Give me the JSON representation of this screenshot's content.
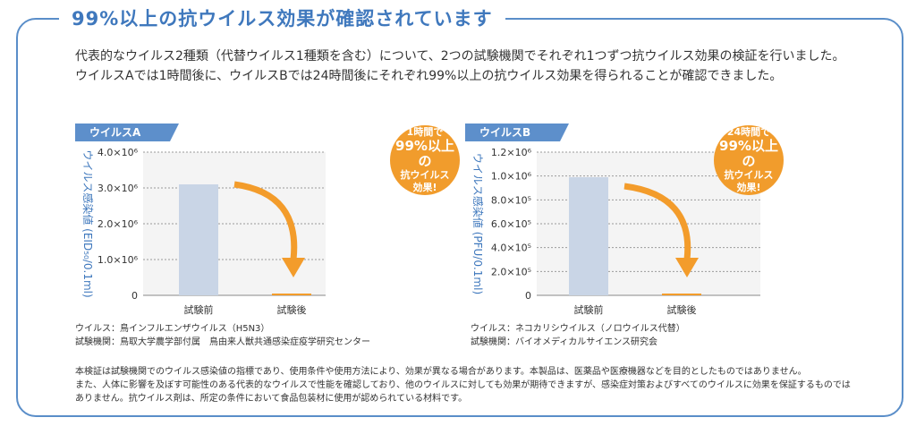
{
  "title": "99%以上の抗ウイルス効果が確認されています",
  "intro": [
    "代表的なウイルス2種類（代替ウイルス1種類を含む）について、2つの試験機関でそれぞれ1つずつ抗ウイルス効果の検証を行いました。",
    "ウイルスAでは1時間後に、ウイルスBでは24時間後にそれぞれ99%以上の抗ウイルス効果を得られることが確認できました。"
  ],
  "colors": {
    "accent": "#3f78bd",
    "bar_before": "#c9d5e6",
    "bar_after": "#f39c2b",
    "badge": "#f19c2c",
    "arrow": "#f39c2b"
  },
  "chart_data": [
    {
      "type": "bar",
      "label": "ウイルスA",
      "categories": [
        "試験前",
        "試験後"
      ],
      "values": [
        3100000,
        30000
      ],
      "ylabel": "ウイルス感染値 (EID₅₀/0.1ml)",
      "ylim": [
        0,
        4000000
      ],
      "ticks": [
        {
          "value": 0,
          "label": "0"
        },
        {
          "value": 1000000,
          "label": "1.0×10⁶"
        },
        {
          "value": 2000000,
          "label": "2.0×10⁶"
        },
        {
          "value": 3000000,
          "label": "3.0×10⁶"
        },
        {
          "value": 4000000,
          "label": "4.0×10⁶"
        }
      ],
      "grid": true,
      "badge": [
        "1時間で",
        "99%以上の",
        "抗ウイルス",
        "効果!"
      ],
      "source": [
        "ウイルス：鳥インフルエンザウイルス（H5N3）",
        "試験機関：鳥取大学農学部付属　鳥由来人獣共通感染症疫学研究センター"
      ]
    },
    {
      "type": "bar",
      "label": "ウイルスB",
      "categories": [
        "試験前",
        "試験後"
      ],
      "values": [
        990000,
        10000
      ],
      "ylabel": "ウイルス感染値 (PFU/0.1ml)",
      "ylim": [
        0,
        1200000
      ],
      "ticks": [
        {
          "value": 0,
          "label": "0"
        },
        {
          "value": 200000,
          "label": "2.0×10⁵"
        },
        {
          "value": 400000,
          "label": "4.0×10⁵"
        },
        {
          "value": 600000,
          "label": "6.0×10⁵"
        },
        {
          "value": 800000,
          "label": "8.0×10⁵"
        },
        {
          "value": 1000000,
          "label": "1.0×10⁶"
        },
        {
          "value": 1200000,
          "label": "1.2×10⁶"
        }
      ],
      "grid": true,
      "badge": [
        "24時間で",
        "99%以上の",
        "抗ウイルス",
        "効果!"
      ],
      "source": [
        "ウイルス：ネコカリシウイルス（ノロウイルス代替）",
        "試験機関：バイオメディカルサイエンス研究会"
      ]
    }
  ],
  "notes": [
    "本検証は試験機関でのウイルス感染値の指標であり、使用条件や使用方法により、効果が異なる場合があります。本製品は、医薬品や医療機器などを目的としたものではありません。",
    "また、人体に影響を及ぼす可能性のある代表的なウイルスで性能を確認しており、他のウイルスに対しても効果が期待できますが、感染症対策およびすべてのウイルスに効果を保証するものでは",
    "ありません。抗ウイルス剤は、所定の条件において食品包装材に使用が認められている材料です。"
  ]
}
